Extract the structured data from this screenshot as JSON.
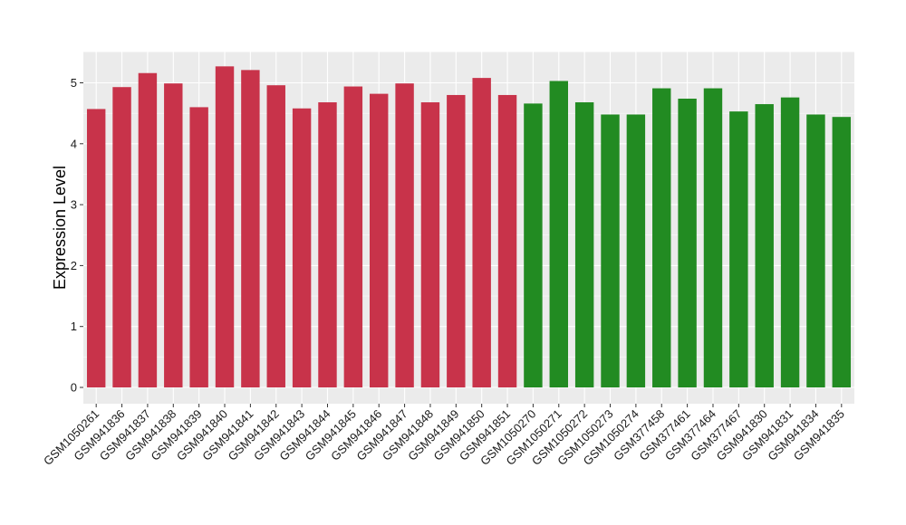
{
  "chart_data": {
    "type": "bar",
    "title": "",
    "xlabel": "",
    "ylabel": "Expression Level",
    "ylim": [
      0,
      5.5
    ],
    "yticks": [
      0,
      1,
      2,
      3,
      4,
      5
    ],
    "grid": true,
    "legend": "none",
    "colors": {
      "group_a": "#C8334A",
      "group_b": "#228B22",
      "panel": "#EBEBEB",
      "gridline": "#FFFFFF"
    },
    "categories": [
      "GSM1050261",
      "GSM941836",
      "GSM941837",
      "GSM941838",
      "GSM941839",
      "GSM941840",
      "GSM941841",
      "GSM941842",
      "GSM941843",
      "GSM941844",
      "GSM941845",
      "GSM941846",
      "GSM941847",
      "GSM941848",
      "GSM941849",
      "GSM941850",
      "GSM941851",
      "GSM1050270",
      "GSM1050271",
      "GSM1050272",
      "GSM1050273",
      "GSM1050274",
      "GSM377458",
      "GSM377461",
      "GSM377464",
      "GSM377467",
      "GSM941830",
      "GSM941831",
      "GSM941834",
      "GSM941835"
    ],
    "values": [
      4.57,
      4.93,
      5.16,
      4.99,
      4.6,
      5.27,
      5.21,
      4.96,
      4.58,
      4.68,
      4.94,
      4.82,
      4.99,
      4.68,
      4.8,
      5.08,
      4.8,
      4.66,
      5.03,
      4.68,
      4.48,
      4.48,
      4.91,
      4.74,
      4.91,
      4.53,
      4.65,
      4.76,
      4.48,
      4.44
    ],
    "groups": [
      "a",
      "a",
      "a",
      "a",
      "a",
      "a",
      "a",
      "a",
      "a",
      "a",
      "a",
      "a",
      "a",
      "a",
      "a",
      "a",
      "a",
      "b",
      "b",
      "b",
      "b",
      "b",
      "b",
      "b",
      "b",
      "b",
      "b",
      "b",
      "b",
      "b"
    ]
  }
}
